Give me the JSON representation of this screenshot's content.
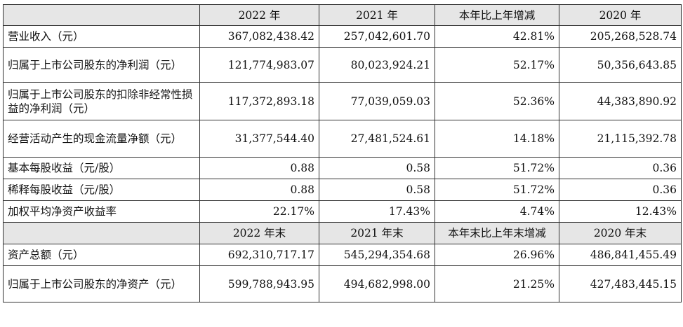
{
  "header1": [
    "2022 年",
    "2021 年",
    "本年比上年增减",
    "2020 年"
  ],
  "rows1": [
    {
      "label": "营业收入（元）",
      "v": [
        "367,082,438.42",
        "257,042,601.70",
        "42.81%",
        "205,268,528.74"
      ]
    },
    {
      "label": "归属于上市公司股东的净利润（元）",
      "v": [
        "121,774,983.07",
        "80,023,924.21",
        "52.17%",
        "50,356,643.85"
      ]
    },
    {
      "label": "归属于上市公司股东的扣除非经常性损益的净利润（元）",
      "v": [
        "117,372,893.18",
        "77,039,059.03",
        "52.36%",
        "44,383,890.92"
      ]
    },
    {
      "label": "经营活动产生的现金流量净额（元）",
      "v": [
        "31,377,544.40",
        "27,481,524.61",
        "14.18%",
        "21,115,392.78"
      ]
    },
    {
      "label": "基本每股收益（元/股）",
      "v": [
        "0.88",
        "0.58",
        "51.72%",
        "0.36"
      ]
    },
    {
      "label": "稀释每股收益（元/股）",
      "v": [
        "0.88",
        "0.58",
        "51.72%",
        "0.36"
      ]
    },
    {
      "label": "加权平均净资产收益率",
      "v": [
        "22.17%",
        "17.43%",
        "4.74%",
        "12.43%"
      ]
    }
  ],
  "header2": [
    "2022 年末",
    "2021 年末",
    "本年末比上年末增减",
    "2020 年末"
  ],
  "rows2": [
    {
      "label": "资产总额（元）",
      "v": [
        "692,310,717.17",
        "545,294,354.68",
        "26.96%",
        "486,841,455.49"
      ]
    },
    {
      "label": "归属于上市公司股东的净资产（元）",
      "v": [
        "599,788,943.95",
        "494,682,998.00",
        "21.25%",
        "427,483,445.15"
      ]
    }
  ]
}
